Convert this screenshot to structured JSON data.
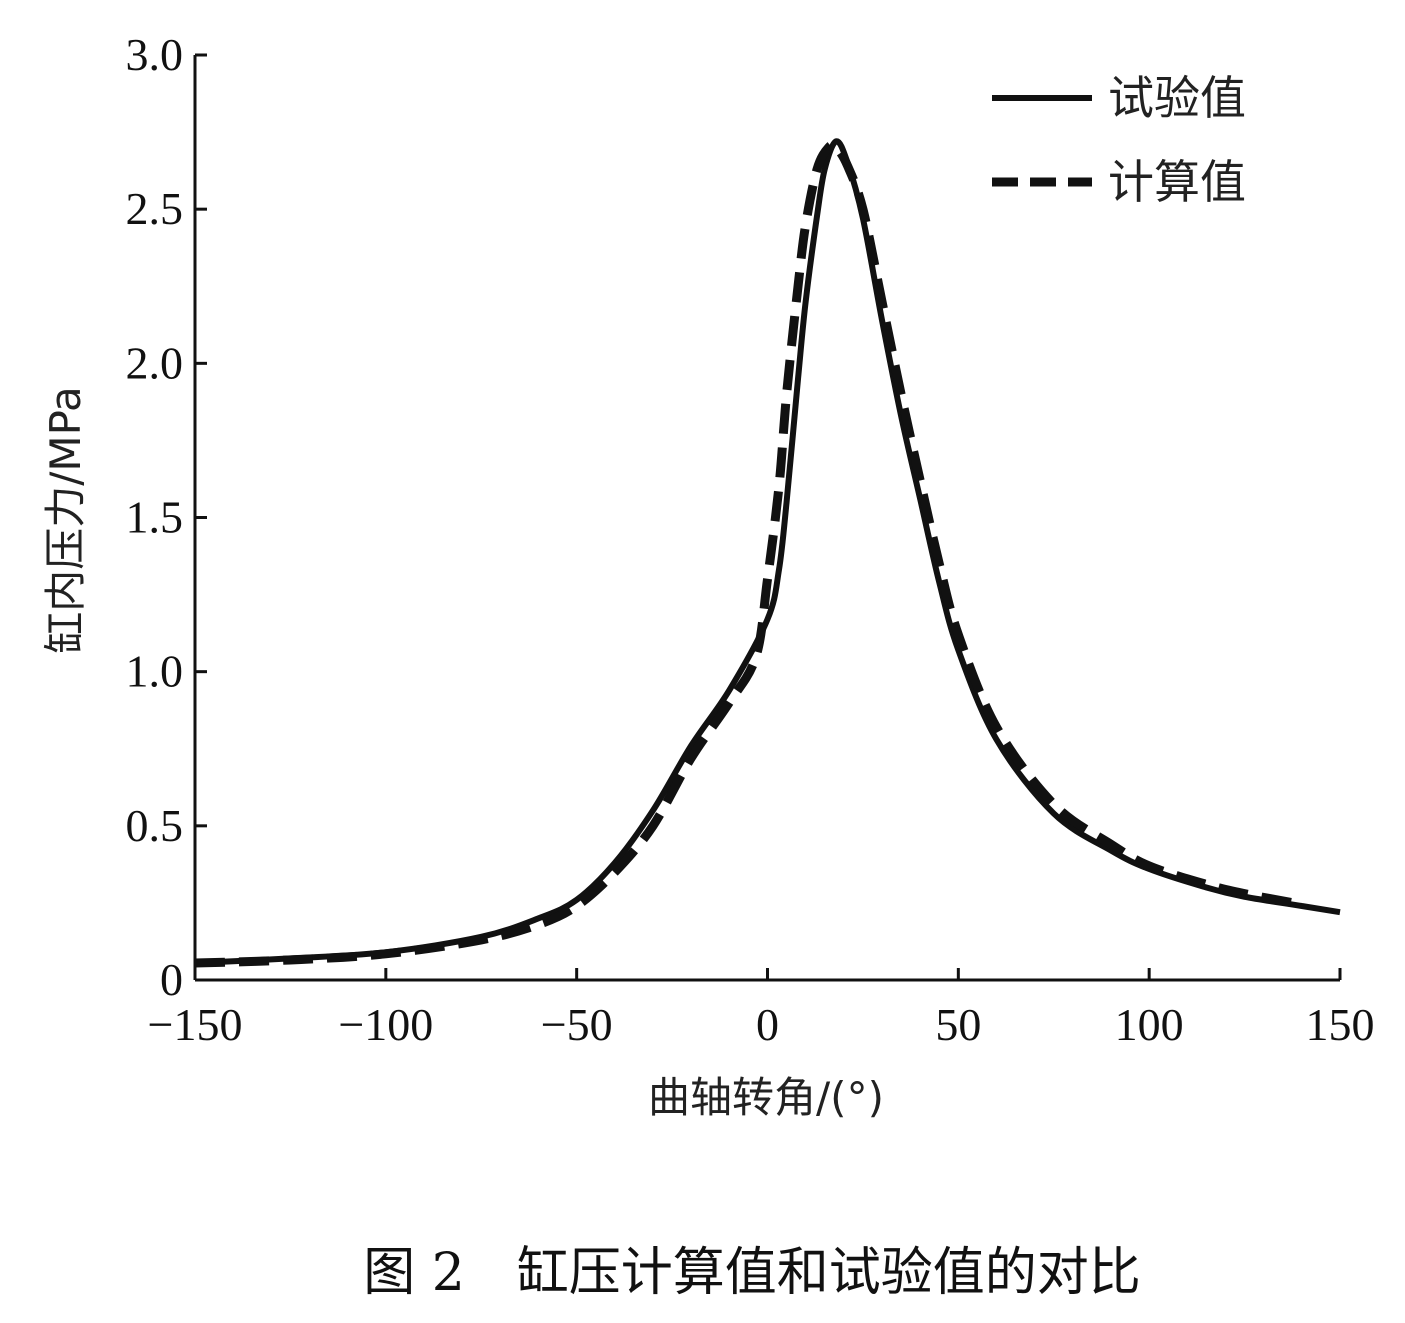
{
  "chart_data": {
    "type": "line",
    "title": "",
    "caption": "图 2　缸压计算值和试验值的对比",
    "xlabel": "曲轴转角/(°)",
    "ylabel": "缸内压力/MPa",
    "xlim": [
      -150,
      150
    ],
    "ylim": [
      0,
      3.0
    ],
    "xticks": [
      -150,
      -100,
      -50,
      0,
      50,
      100,
      150
    ],
    "xtick_labels": [
      "−150",
      "−100",
      "−50",
      "0",
      "50",
      "100",
      "150"
    ],
    "yticks": [
      0,
      0.5,
      1.0,
      1.5,
      2.0,
      2.5,
      3.0
    ],
    "ytick_labels": [
      "0",
      "0.5",
      "1.0",
      "1.5",
      "2.0",
      "2.5",
      "3.0"
    ],
    "grid": false,
    "legend_position": "top-right",
    "series": [
      {
        "name": "试验值",
        "style": "solid",
        "color": "#111111",
        "x": [
          -150,
          -125,
          -100,
          -75,
          -60,
          -50,
          -40,
          -30,
          -20,
          -10,
          0,
          3,
          5,
          8,
          10,
          13,
          15,
          18,
          21,
          25,
          30,
          35,
          40,
          45,
          50,
          60,
          75,
          90,
          100,
          115,
          125,
          140,
          150
        ],
        "y": [
          0.055,
          0.07,
          0.09,
          0.14,
          0.2,
          0.26,
          0.38,
          0.55,
          0.76,
          0.94,
          1.17,
          1.33,
          1.55,
          1.95,
          2.2,
          2.48,
          2.63,
          2.72,
          2.65,
          2.47,
          2.14,
          1.83,
          1.56,
          1.29,
          1.07,
          0.78,
          0.54,
          0.42,
          0.36,
          0.3,
          0.27,
          0.24,
          0.22
        ]
      },
      {
        "name": "计算值",
        "style": "dashed",
        "color": "#111111",
        "x": [
          -150,
          -125,
          -100,
          -75,
          -60,
          -50,
          -40,
          -30,
          -20,
          -10,
          -3,
          0,
          3,
          5,
          8,
          10,
          13,
          16,
          18,
          21,
          25,
          30,
          35,
          40,
          45,
          50,
          60,
          75,
          90,
          100,
          115,
          125,
          140
        ],
        "y": [
          0.055,
          0.065,
          0.085,
          0.13,
          0.18,
          0.24,
          0.35,
          0.5,
          0.72,
          0.9,
          1.05,
          1.3,
          1.6,
          1.9,
          2.25,
          2.45,
          2.63,
          2.7,
          2.7,
          2.64,
          2.5,
          2.2,
          1.9,
          1.62,
          1.35,
          1.12,
          0.82,
          0.57,
          0.44,
          0.37,
          0.31,
          0.28,
          0.245
        ]
      }
    ]
  }
}
